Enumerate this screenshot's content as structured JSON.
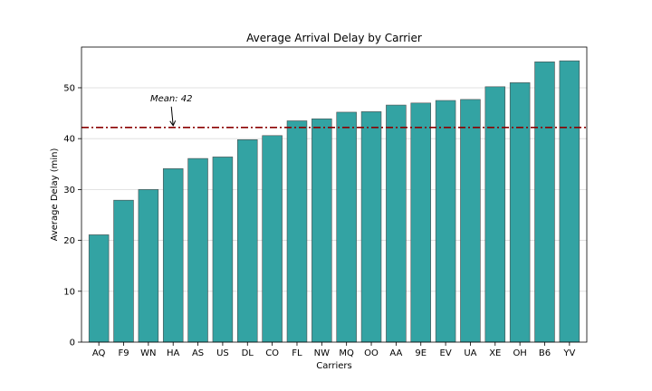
{
  "chart_data": {
    "type": "bar",
    "title": "Average Arrival Delay by Carrier",
    "xlabel": "Carriers",
    "ylabel": "Average Delay (min)",
    "categories": [
      "AQ",
      "F9",
      "WN",
      "HA",
      "AS",
      "US",
      "DL",
      "CO",
      "FL",
      "NW",
      "MQ",
      "OO",
      "AA",
      "9E",
      "EV",
      "UA",
      "XE",
      "OH",
      "B6",
      "YV"
    ],
    "values": [
      21.1,
      27.9,
      30.0,
      34.1,
      36.1,
      36.4,
      39.8,
      40.6,
      43.5,
      43.9,
      45.2,
      45.3,
      46.6,
      47.0,
      47.5,
      47.7,
      50.2,
      51.0,
      55.1,
      55.3
    ],
    "ylim": [
      0,
      58
    ],
    "yticks": [
      0,
      10,
      20,
      30,
      40,
      50
    ],
    "grid": "horizontal",
    "mean_line": {
      "value": 42.2,
      "color": "#8b0000"
    },
    "annotation": {
      "text": "Mean: 42",
      "x_category": "HA"
    },
    "bar_color": "#33a3a3",
    "bar_edge_color": "#4d4d4d"
  }
}
